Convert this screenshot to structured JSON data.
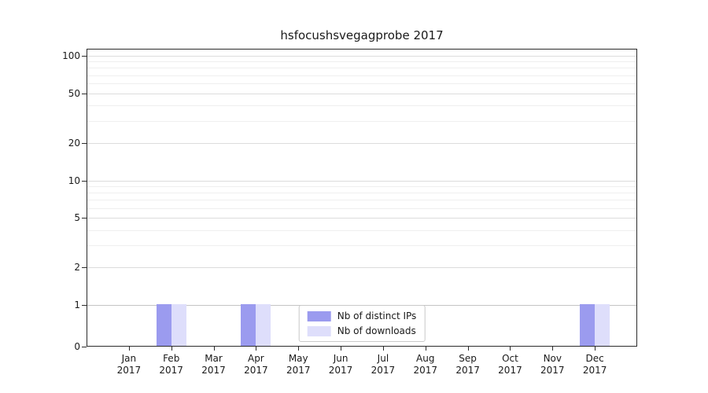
{
  "title": "hsfocushsvegagprobe 2017",
  "chart_data": {
    "type": "bar",
    "title": "hsfocushsvegagprobe 2017",
    "x_categories": [
      {
        "month": "Jan",
        "year": "2017"
      },
      {
        "month": "Feb",
        "year": "2017"
      },
      {
        "month": "Mar",
        "year": "2017"
      },
      {
        "month": "Apr",
        "year": "2017"
      },
      {
        "month": "May",
        "year": "2017"
      },
      {
        "month": "Jun",
        "year": "2017"
      },
      {
        "month": "Jul",
        "year": "2017"
      },
      {
        "month": "Aug",
        "year": "2017"
      },
      {
        "month": "Sep",
        "year": "2017"
      },
      {
        "month": "Oct",
        "year": "2017"
      },
      {
        "month": "Nov",
        "year": "2017"
      },
      {
        "month": "Dec",
        "year": "2017"
      }
    ],
    "series": [
      {
        "name": "Nb of distinct IPs",
        "color": "#9b9bef",
        "values": [
          0,
          1,
          0,
          1,
          0,
          0,
          0,
          0,
          0,
          0,
          0,
          1
        ]
      },
      {
        "name": "Nb of downloads",
        "color": "#dedefb",
        "values": [
          0,
          1,
          0,
          1,
          0,
          0,
          0,
          0,
          0,
          0,
          0,
          1
        ]
      }
    ],
    "y_scale": "symlog",
    "y_ticks": [
      0,
      1,
      2,
      5,
      10,
      20,
      50,
      100
    ],
    "y_minor_gridlines": [
      3,
      4,
      6,
      7,
      8,
      9,
      30,
      40,
      60,
      70,
      80,
      90
    ],
    "ylim": [
      0,
      110
    ],
    "grid": true,
    "legend_position": "lower center"
  }
}
